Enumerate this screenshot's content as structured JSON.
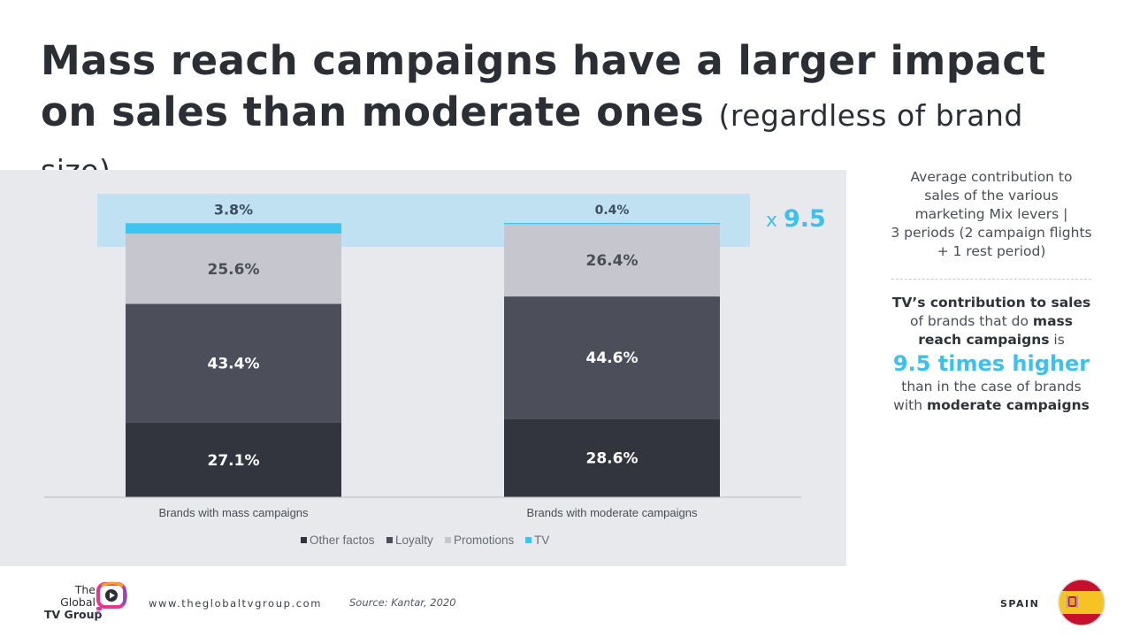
{
  "title": {
    "main": "Mass reach campaigns have a larger impact on sales than moderate ones",
    "sub": "(regardless of brand size)"
  },
  "chart_data": {
    "type": "bar",
    "stacked": true,
    "title": "",
    "xlabel": "",
    "ylabel": "",
    "categories": [
      "Brands with mass campaigns",
      "Brands with moderate campaigns"
    ],
    "ylim": [
      0,
      100
    ],
    "series": [
      {
        "name": "Other factos",
        "values": [
          27.1,
          28.6
        ],
        "labels": [
          "27.1%",
          "28.6%"
        ],
        "color": "#32353d",
        "label_color": "#ffffff"
      },
      {
        "name": "Loyalty",
        "values": [
          43.4,
          44.6
        ],
        "labels": [
          "43.4%",
          "44.6%"
        ],
        "color": "#4c4f59",
        "label_color": "#ffffff"
      },
      {
        "name": "Promotions",
        "values": [
          25.6,
          26.4
        ],
        "labels": [
          "25.6%",
          "26.4%"
        ],
        "color": "#c6c6cf",
        "label_color": "#4a4d55"
      },
      {
        "name": "TV",
        "values": [
          3.8,
          0.4
        ],
        "labels": [
          "3.8%",
          "0.4%"
        ],
        "color": "#3ec4f0",
        "label_color": "#3a4f60"
      }
    ],
    "annotation": {
      "text": "x 9.5",
      "color": "#3cc0ee",
      "highlight_color": "#bfe1f2"
    },
    "legend": "bottom"
  },
  "side": {
    "desc_lines": [
      "Average contribution to",
      "sales of the various",
      "marketing Mix levers |",
      "3 periods (2 campaign flights",
      "+ 1 rest period)"
    ],
    "tv_bold1": "TV’s contribution to sales",
    "tv_text1": "of brands that do",
    "tv_bold2": "mass",
    "tv_bold3": "reach campaigns",
    "tv_text2": "is",
    "tv_big": "9.5 times higher",
    "tv_text3": "than in the case of brands",
    "tv_text4": "with",
    "tv_bold4": "moderate campaigns"
  },
  "footer": {
    "logo_lines": [
      "The",
      "Global",
      "TV Group"
    ],
    "url": "www.theglobaltvgroup.com",
    "source": "Source: Kantar, 2020",
    "country": "SPAIN"
  },
  "colors": {
    "accent": "#3cc0ee",
    "panel": "#e8e9ed"
  },
  "icons": {
    "logo": "tv-play-logo-icon",
    "flag": "spain-flag-icon"
  }
}
